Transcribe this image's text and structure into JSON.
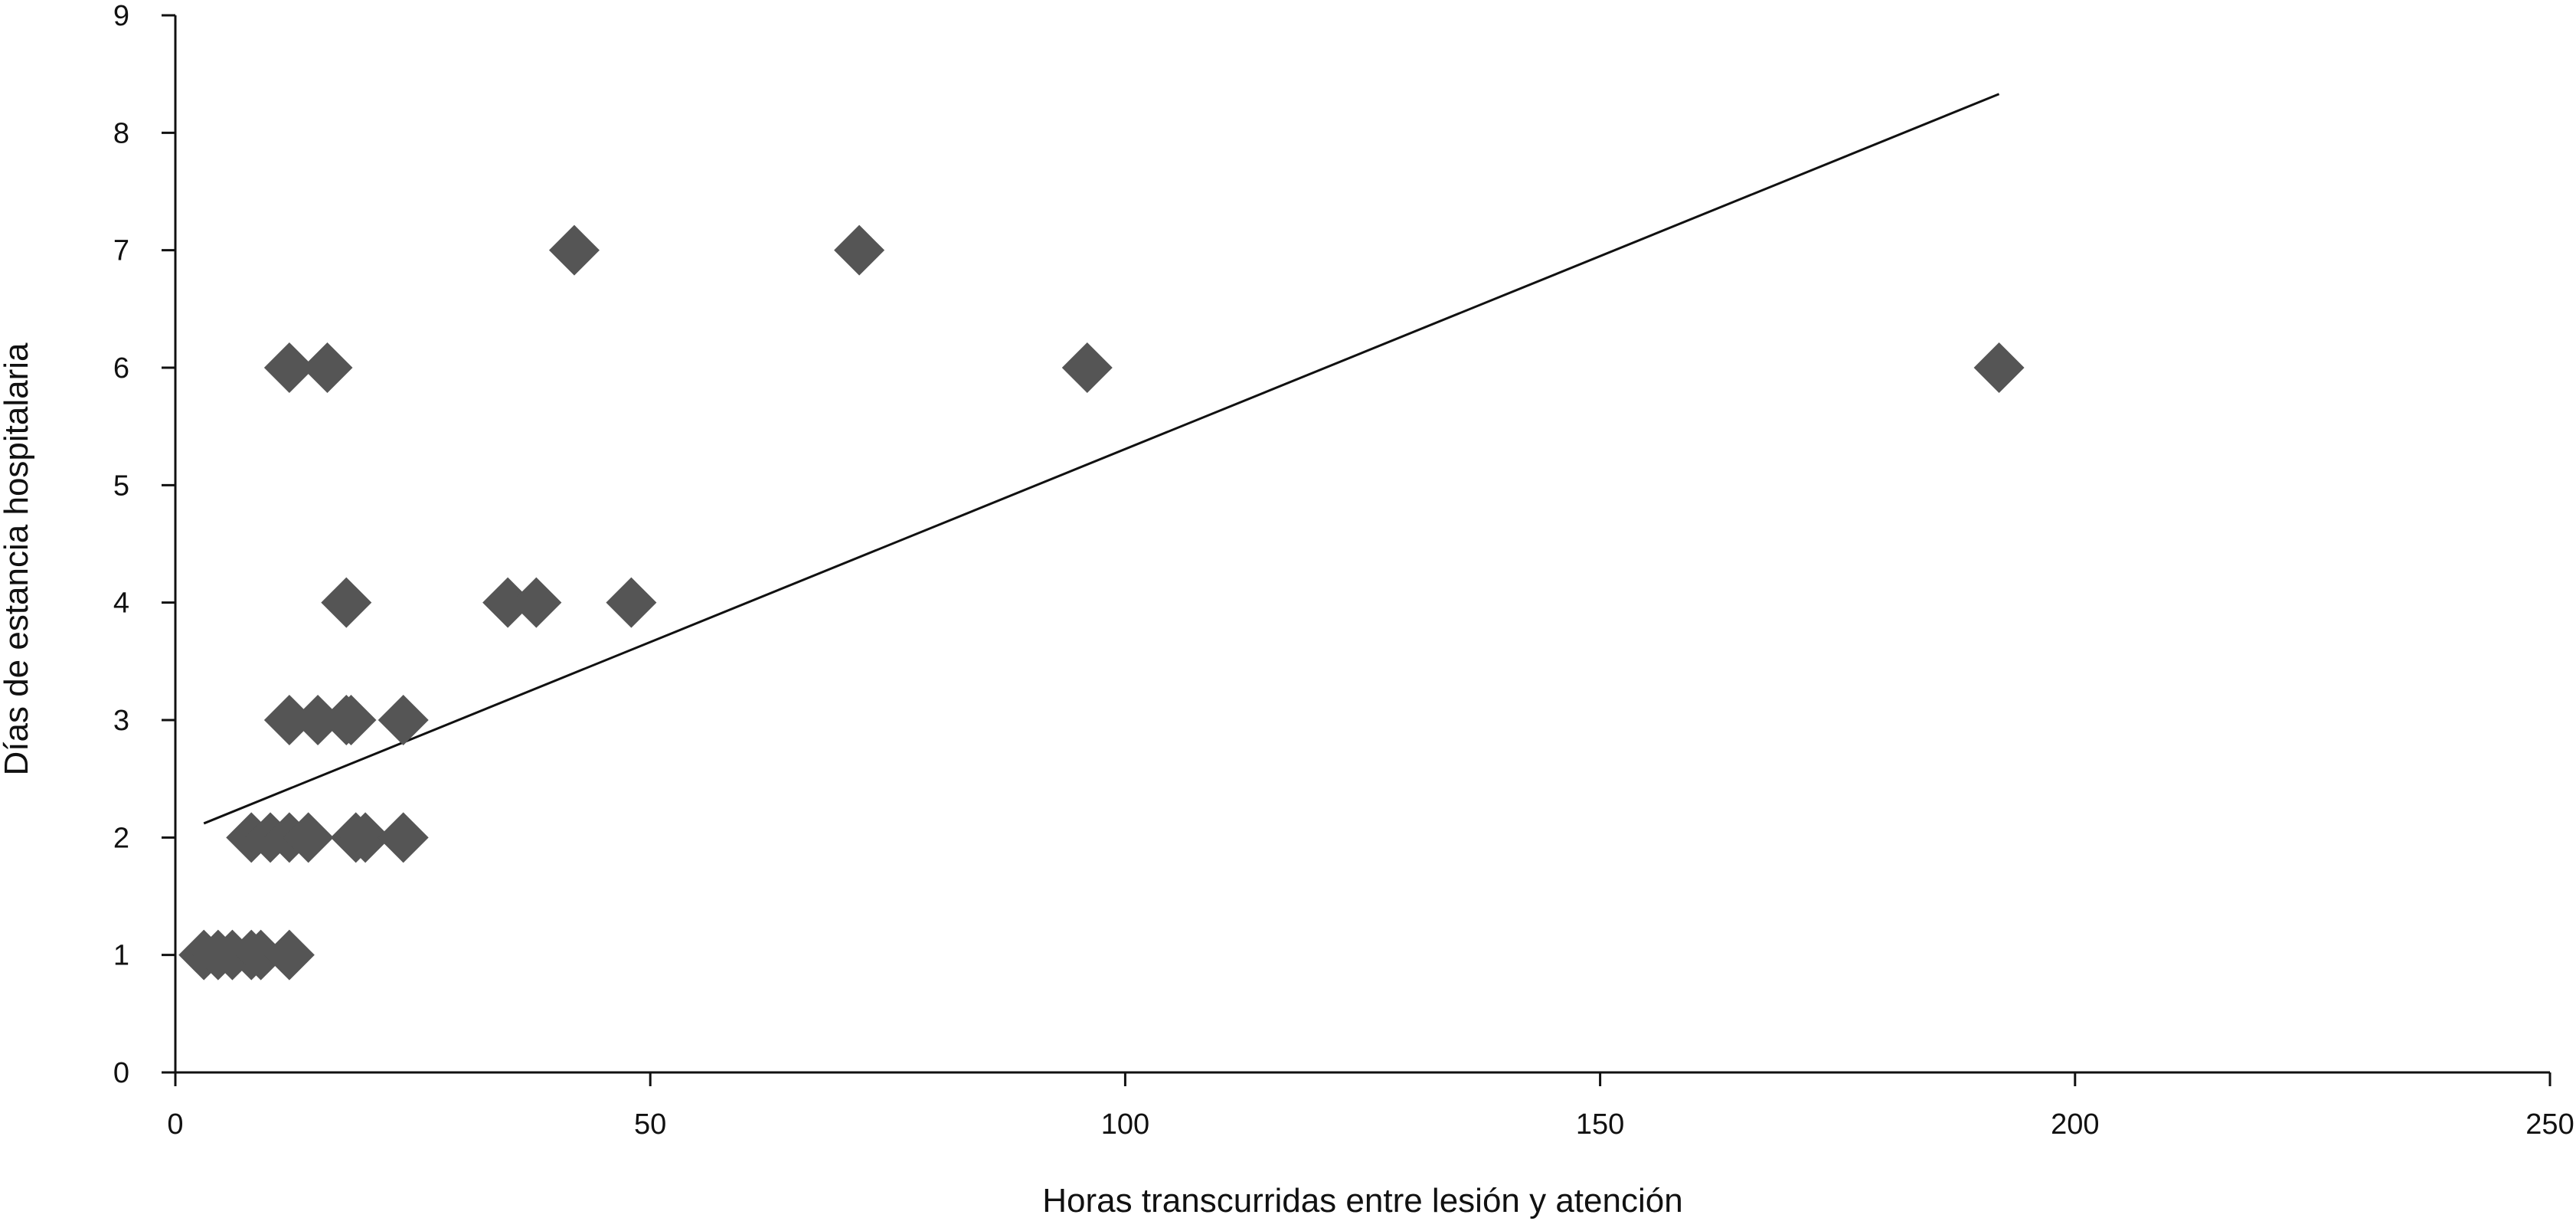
{
  "chart_data": {
    "type": "scatter",
    "title": "",
    "xlabel": "Horas transcurridas entre lesión y atención",
    "ylabel": "Días de estancia hospitalaria",
    "xlim": [
      0,
      250
    ],
    "ylim": [
      0,
      9
    ],
    "xticks": [
      0,
      50,
      100,
      150,
      200,
      250
    ],
    "yticks": [
      0,
      1,
      2,
      3,
      4,
      5,
      6,
      7,
      8,
      9
    ],
    "grid": false,
    "legend": "none",
    "marker": "diamond",
    "marker_color": "#555555",
    "line_color": "#111111",
    "points": [
      {
        "x": 3,
        "y": 1
      },
      {
        "x": 4.5,
        "y": 1
      },
      {
        "x": 6,
        "y": 1
      },
      {
        "x": 8,
        "y": 1
      },
      {
        "x": 9,
        "y": 1
      },
      {
        "x": 12,
        "y": 1
      },
      {
        "x": 8,
        "y": 2
      },
      {
        "x": 10,
        "y": 2
      },
      {
        "x": 12,
        "y": 2
      },
      {
        "x": 14,
        "y": 2
      },
      {
        "x": 19,
        "y": 2
      },
      {
        "x": 20,
        "y": 2
      },
      {
        "x": 24,
        "y": 2
      },
      {
        "x": 12,
        "y": 3
      },
      {
        "x": 15,
        "y": 3
      },
      {
        "x": 18,
        "y": 3
      },
      {
        "x": 18.5,
        "y": 3
      },
      {
        "x": 24,
        "y": 3
      },
      {
        "x": 18,
        "y": 4
      },
      {
        "x": 35,
        "y": 4
      },
      {
        "x": 38,
        "y": 4
      },
      {
        "x": 48,
        "y": 4
      },
      {
        "x": 12,
        "y": 6
      },
      {
        "x": 16,
        "y": 6
      },
      {
        "x": 96,
        "y": 6
      },
      {
        "x": 192,
        "y": 6
      },
      {
        "x": 42,
        "y": 7
      },
      {
        "x": 72,
        "y": 7
      }
    ],
    "trendline": {
      "x": [
        3,
        192
      ],
      "y": [
        2.12,
        8.33
      ]
    }
  }
}
